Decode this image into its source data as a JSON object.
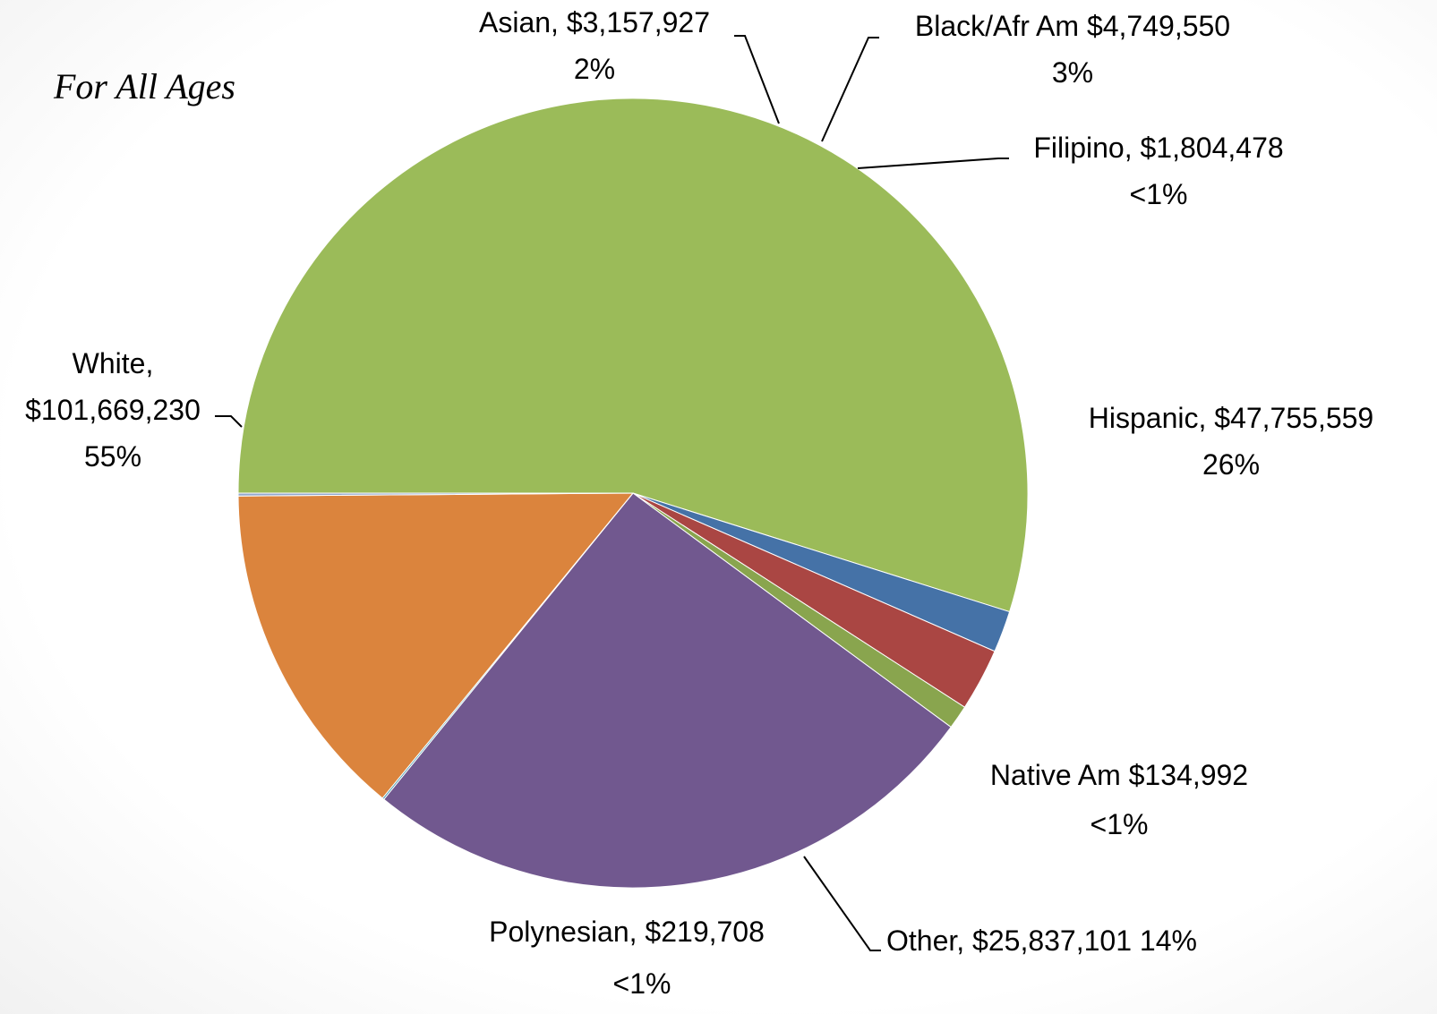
{
  "chart_data": {
    "type": "pie",
    "title": "For All Ages",
    "start_angle_deg": 180,
    "direction": "clockwise",
    "slices": [
      {
        "name": "White",
        "value": 101669230,
        "value_text": "$101,669,230",
        "pct_text": "55%",
        "color": "#9BBB59"
      },
      {
        "name": "Asian",
        "value": 3157927,
        "value_text": "$3,157,927",
        "pct_text": "2%",
        "color": "#4572A7"
      },
      {
        "name": "Black/Afr Am",
        "value": 4749550,
        "value_text": "$4,749,550",
        "pct_text": "3%",
        "color": "#AA4643"
      },
      {
        "name": "Filipino",
        "value": 1804478,
        "value_text": "$1,804,478",
        "pct_text": "<1%",
        "color": "#89A54E"
      },
      {
        "name": "Hispanic",
        "value": 47755559,
        "value_text": "$47,755,559",
        "pct_text": "26%",
        "color": "#71588F"
      },
      {
        "name": "Native Am",
        "value": 134992,
        "value_text": "$134,992",
        "pct_text": "<1%",
        "color": "#4198AF"
      },
      {
        "name": "Other",
        "value": 25837101,
        "value_text": "$25,837,101",
        "pct_text": "14%",
        "color": "#DB843D"
      },
      {
        "name": "Polynesian",
        "value": 219708,
        "value_text": "$219,708",
        "pct_text": "<1%",
        "color": "#93A9CF"
      }
    ],
    "labels": {
      "asian_line1": "Asian,  $3,157,927",
      "asian_line2": "2%",
      "black_line1": "Black/Afr Am  $4,749,550",
      "black_line2": "3%",
      "filipino_line1": "Filipino,  $1,804,478",
      "filipino_line2": "<1%",
      "hispanic_line1": "Hispanic,  $47,755,559",
      "hispanic_line2": "26%",
      "native_line1": "Native Am  $134,992",
      "native_line2": "<1%",
      "other_line1": "Other,  $25,837,101 14%",
      "polynesian_line1": "Polynesian,  $219,708",
      "polynesian_line2": "<1%",
      "white_line1": "White,",
      "white_line2": "$101,669,230",
      "white_line3": "55%"
    }
  }
}
